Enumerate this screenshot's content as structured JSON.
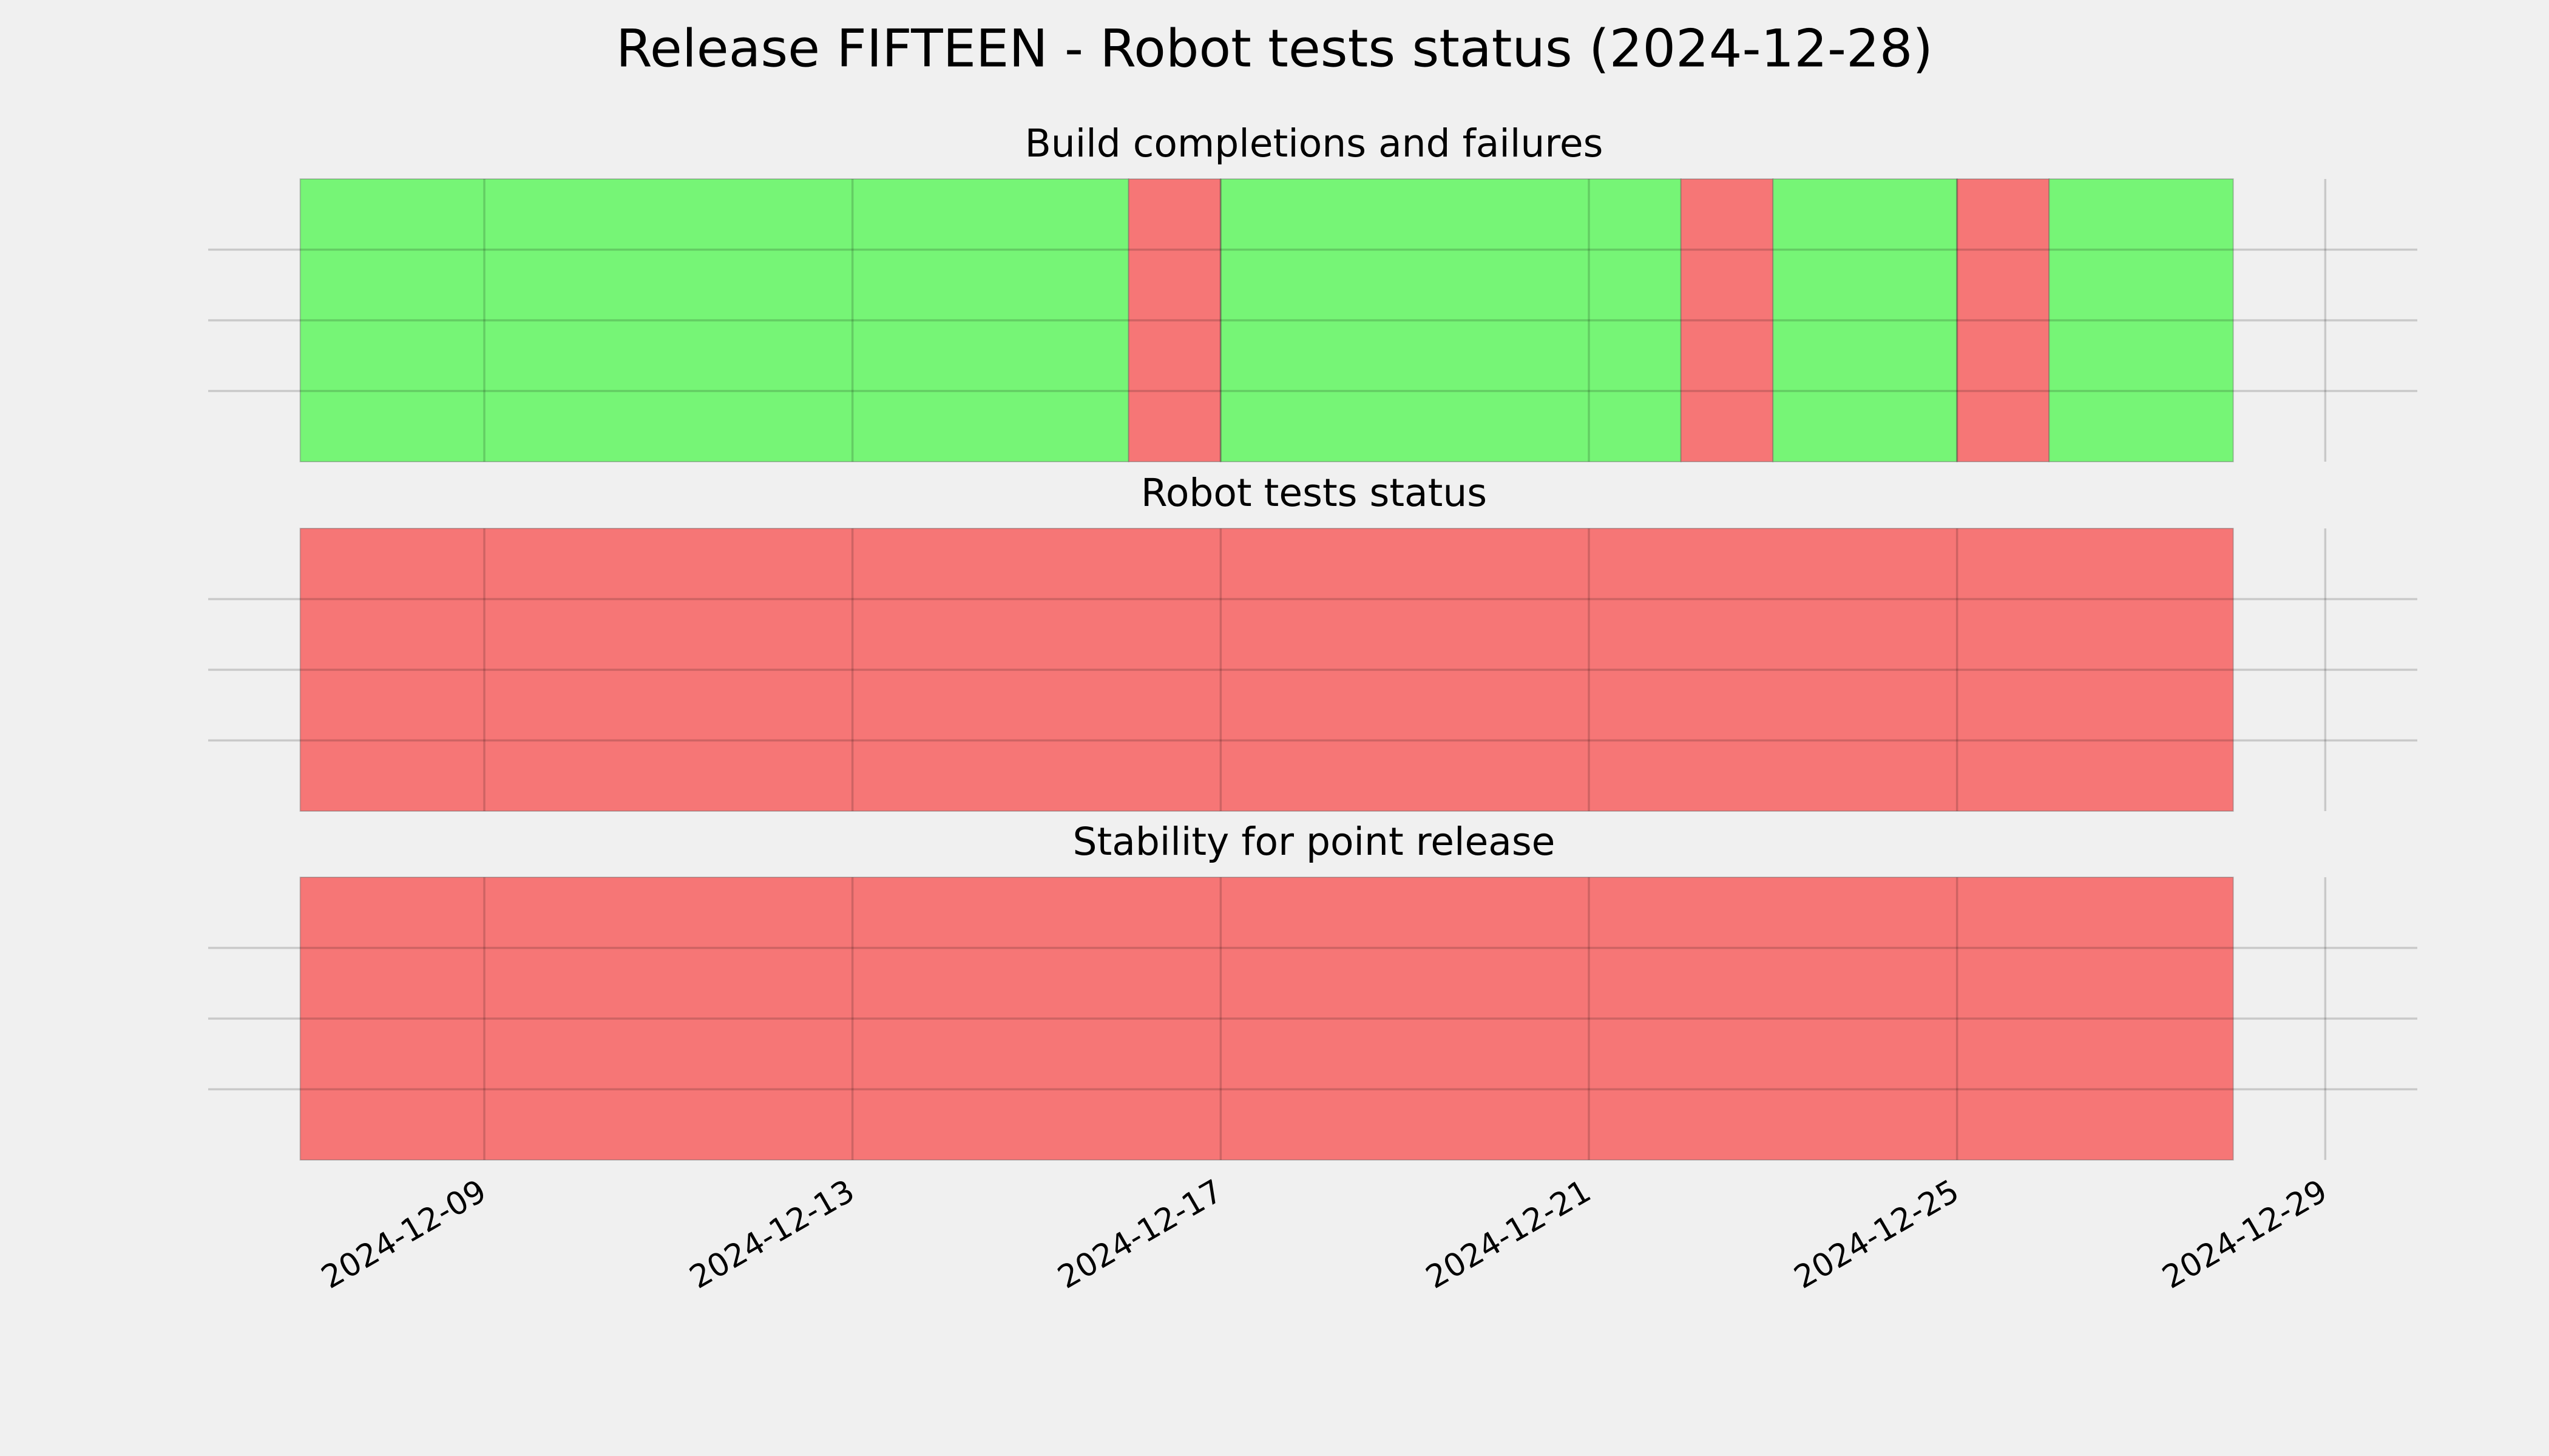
{
  "title": "Release FIFTEEN - Robot tests status (2024-12-28)",
  "chart_data": [
    {
      "type": "timeline",
      "title": "Build completions and failures",
      "starts": [
        "2024-12-07",
        "2024-12-16",
        "2024-12-17",
        "2024-12-22",
        "2024-12-23",
        "2024-12-25",
        "2024-12-26"
      ],
      "ends": [
        "2024-12-16",
        "2024-12-17",
        "2024-12-22",
        "2024-12-23",
        "2024-12-25",
        "2024-12-26",
        "2024-12-28"
      ],
      "colors": [
        "#76f576",
        "#f67676",
        "#76f576",
        "#f67676",
        "#76f576",
        "#f67676",
        "#76f576"
      ],
      "xlim": [
        "2024-12-06",
        "2024-12-30"
      ],
      "xticks": [
        "2024-12-09",
        "2024-12-13",
        "2024-12-17",
        "2024-12-21",
        "2024-12-25",
        "2024-12-29"
      ],
      "ylim": [
        0,
        1
      ],
      "yticks": [
        0.25,
        0.5,
        0.75
      ],
      "grid": true
    },
    {
      "type": "timeline",
      "title": "Robot tests status",
      "starts": [
        "2024-12-07"
      ],
      "ends": [
        "2024-12-28"
      ],
      "colors": [
        "#f67676"
      ],
      "xlim": [
        "2024-12-06",
        "2024-12-30"
      ],
      "xticks": [
        "2024-12-09",
        "2024-12-13",
        "2024-12-17",
        "2024-12-21",
        "2024-12-25",
        "2024-12-29"
      ],
      "ylim": [
        0,
        1
      ],
      "yticks": [
        0.25,
        0.5,
        0.75
      ],
      "grid": true
    },
    {
      "type": "timeline",
      "title": "Stability for point release",
      "starts": [
        "2024-12-07"
      ],
      "ends": [
        "2024-12-28"
      ],
      "colors": [
        "#f67676"
      ],
      "xlim": [
        "2024-12-06",
        "2024-12-30"
      ],
      "xticks": [
        "2024-12-09",
        "2024-12-13",
        "2024-12-17",
        "2024-12-21",
        "2024-12-25",
        "2024-12-29"
      ],
      "ylim": [
        0,
        1
      ],
      "yticks": [
        0.25,
        0.5,
        0.75
      ],
      "grid": true
    }
  ]
}
